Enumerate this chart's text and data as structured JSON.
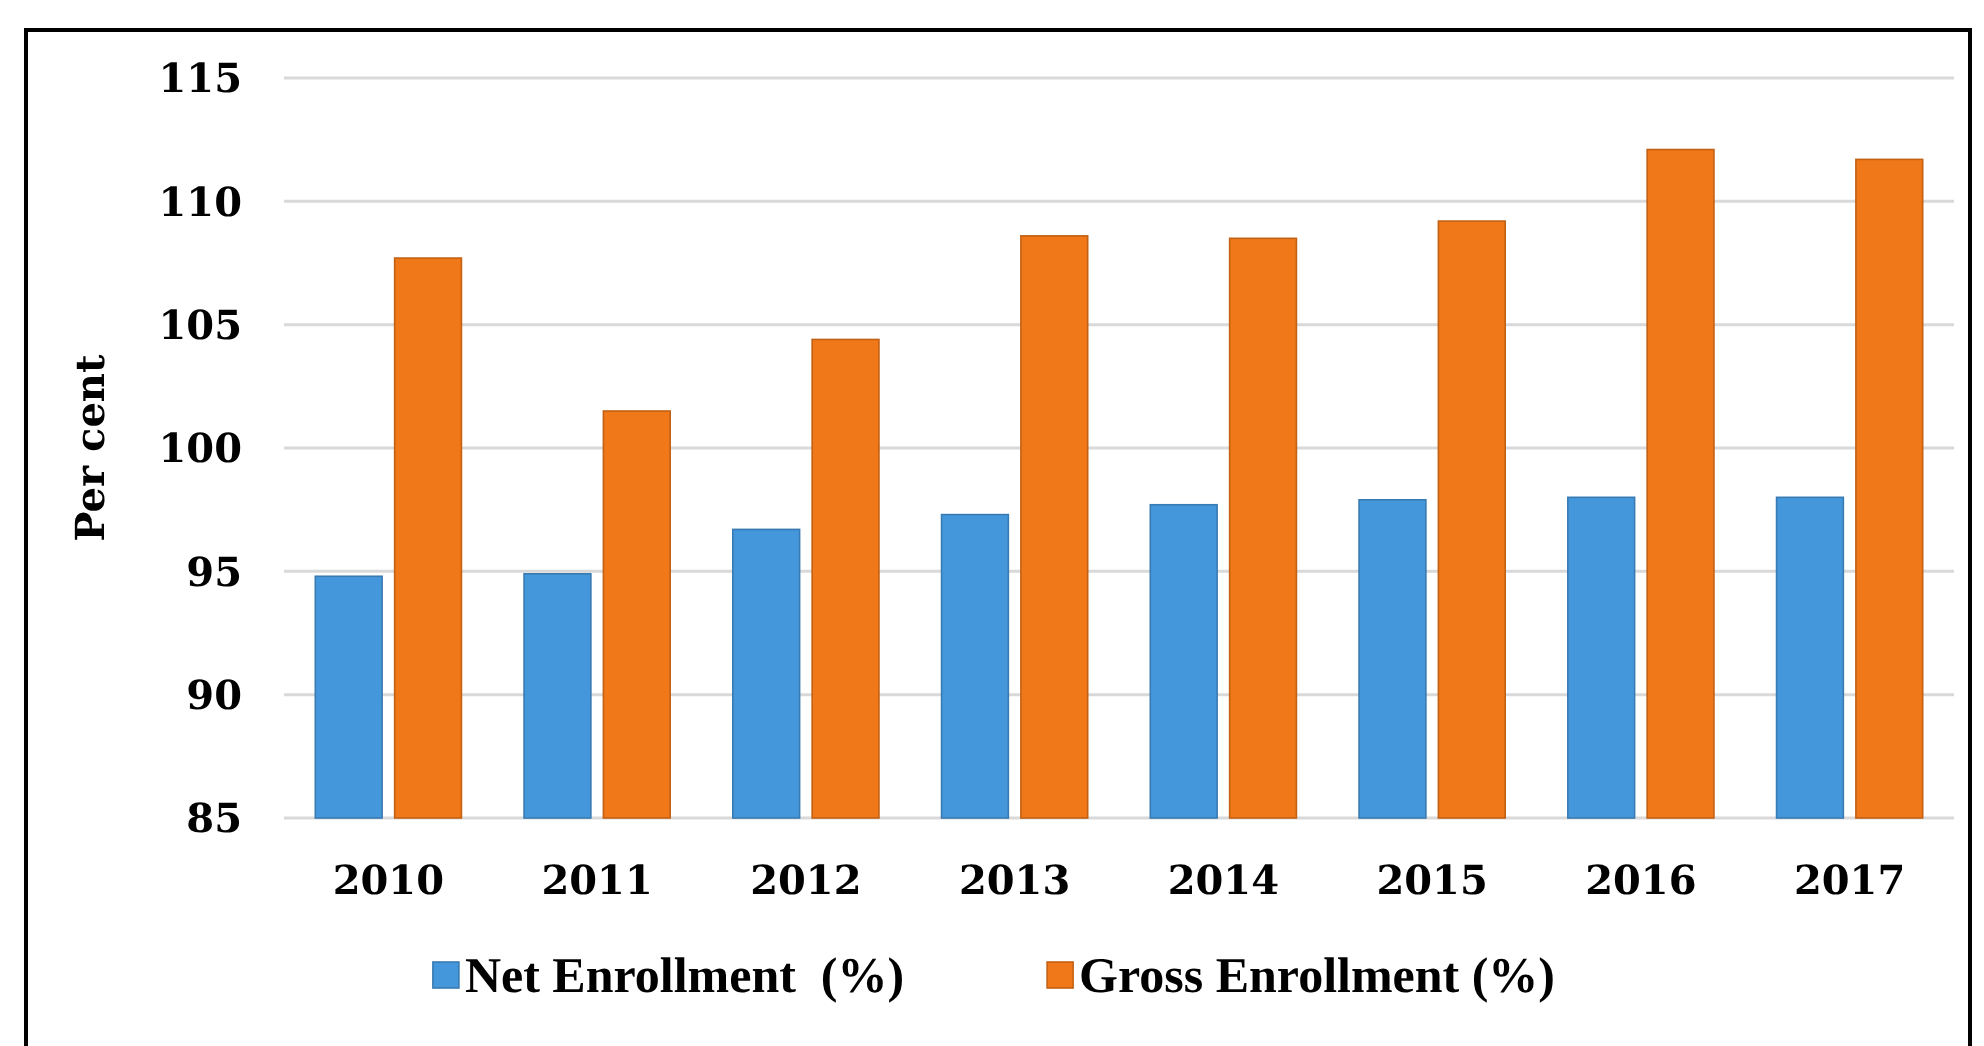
{
  "chart_data": {
    "type": "bar",
    "ylabel": "Per cent",
    "categories": [
      "2010",
      "2011",
      "2012",
      "2013",
      "2014",
      "2015",
      "2016",
      "2017"
    ],
    "series": [
      {
        "name": "Net Enrollment  (%)",
        "color": "#4597dc",
        "values": [
          94.8,
          94.9,
          96.7,
          97.3,
          97.7,
          97.9,
          98.0,
          98.0
        ]
      },
      {
        "name": "Gross Enrollment (%)",
        "color": "#f07818",
        "values": [
          107.7,
          101.5,
          104.4,
          108.6,
          108.5,
          109.2,
          112.1,
          111.7
        ]
      }
    ],
    "ylim": [
      85,
      115
    ],
    "yticks": [
      85,
      90,
      95,
      100,
      105,
      110,
      115
    ],
    "grid": "y",
    "legend": "bottom"
  }
}
